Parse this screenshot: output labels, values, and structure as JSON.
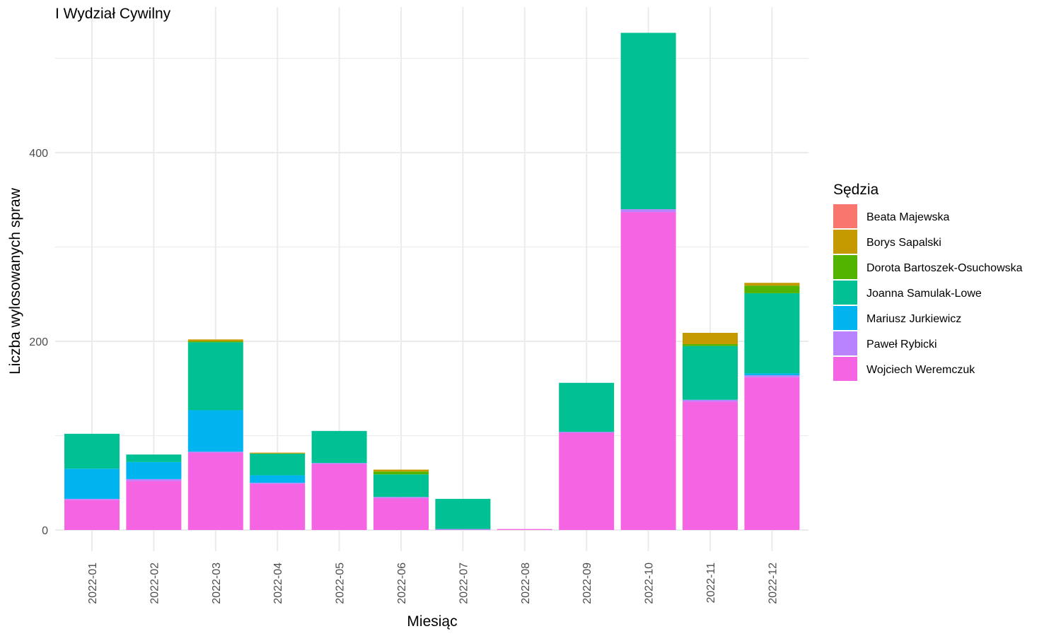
{
  "chart_data": {
    "type": "bar",
    "stacked": true,
    "title": "I Wydział Cywilny",
    "xlabel": "Miesiąc",
    "ylabel": "Liczba wylosowanych spraw",
    "ylim": [
      0,
      530
    ],
    "yticks": [
      0,
      200,
      400
    ],
    "grid": true,
    "legend_title": "Sędzia",
    "legend_position": "right",
    "categories": [
      "2022-01",
      "2022-02",
      "2022-03",
      "2022-04",
      "2022-05",
      "2022-06",
      "2022-07",
      "2022-08",
      "2022-09",
      "2022-10",
      "2022-11",
      "2022-12"
    ],
    "series": [
      {
        "name": "Wojciech Weremczuk",
        "color": "#F564E3",
        "values": [
          32,
          52,
          82,
          49,
          70,
          34,
          0,
          1,
          103,
          337,
          136,
          162
        ]
      },
      {
        "name": "Paweł Rybicki",
        "color": "#B983FF",
        "values": [
          1,
          2,
          1,
          1,
          1,
          1,
          1,
          0,
          1,
          3,
          2,
          2
        ]
      },
      {
        "name": "Mariusz Jurkiewicz",
        "color": "#00B4EF",
        "values": [
          32,
          18,
          44,
          8,
          0,
          0,
          0,
          0,
          0,
          0,
          0,
          2
        ]
      },
      {
        "name": "Joanna Samulak-Lowe",
        "color": "#00C094",
        "values": [
          37,
          8,
          72,
          23,
          34,
          24,
          32,
          0,
          52,
          187,
          57,
          85
        ]
      },
      {
        "name": "Dorota Bartoszek-Osuchowska",
        "color": "#53B400",
        "values": [
          0,
          0,
          1,
          0,
          0,
          3,
          0,
          0,
          0,
          0,
          2,
          8
        ]
      },
      {
        "name": "Borys Sapalski",
        "color": "#C49A00",
        "values": [
          0,
          0,
          2,
          1,
          0,
          2,
          0,
          0,
          0,
          0,
          12,
          3
        ]
      },
      {
        "name": "Beata Majewska",
        "color": "#F8766D",
        "values": [
          0,
          0,
          0,
          0,
          0,
          0,
          0,
          0,
          0,
          0,
          0,
          0
        ]
      }
    ],
    "legend_order": [
      "Beata Majewska",
      "Borys Sapalski",
      "Dorota Bartoszek-Osuchowska",
      "Joanna Samulak-Lowe",
      "Mariusz Jurkiewicz",
      "Paweł Rybicki",
      "Wojciech Weremczuk"
    ]
  }
}
